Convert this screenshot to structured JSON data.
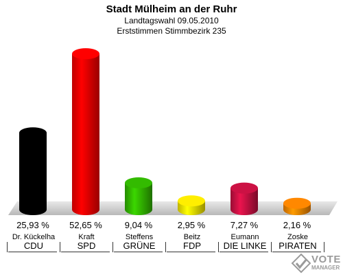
{
  "header": {
    "title": "Stadt Mülheim an der Ruhr",
    "subtitle": "Landtagswahl 09.05.2010",
    "subtitle2": "Erststimmen Stimmbezirk 235"
  },
  "chart_data": {
    "type": "bar",
    "title": "Stadt Mülheim an der Ruhr",
    "categories": [
      "CDU",
      "SPD",
      "GRÜNE",
      "FDP",
      "DIE LINKE",
      "PIRATEN"
    ],
    "candidates": [
      "Dr. Kückelha",
      "Kraft",
      "Steffens",
      "Beitz",
      "Eumann",
      "Zoske"
    ],
    "values": [
      25.93,
      52.65,
      9.04,
      2.95,
      7.27,
      2.16
    ],
    "value_labels": [
      "25,93 %",
      "52,65 %",
      "9,04 %",
      "2,95 %",
      "7,27 %",
      "2,16 %"
    ],
    "colors": [
      "#000000",
      "#ff0000",
      "#33bb00",
      "#ffee00",
      "#cc1144",
      "#ff8800"
    ],
    "ylim": [
      0,
      55
    ]
  },
  "logo": {
    "line1": "VOTE",
    "line2": "MANAGER"
  }
}
